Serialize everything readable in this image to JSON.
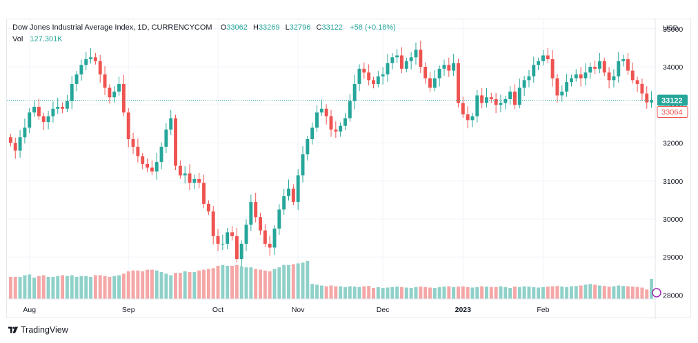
{
  "legend": {
    "title": "Dow Jones Industrial Average Index, 1D, CURRENCYCOM",
    "o_label": "O",
    "o_value": "33062",
    "h_label": "H",
    "h_value": "33269",
    "l_label": "L",
    "l_value": "32796",
    "c_label": "C",
    "c_value": "33122",
    "change": "+58 (+0.18%)",
    "vol_label": "Vol",
    "vol_value": "127.301K"
  },
  "footer": {
    "brand": "TradingView"
  },
  "colors": {
    "up": "#26a69a",
    "down": "#ef5350",
    "up_vol": "#8fd1c9",
    "down_vol": "#f4a7a6",
    "grid": "#f0f3fa",
    "axis_text": "#131722"
  },
  "chart_data": {
    "type": "candlestick",
    "title": "Dow Jones Industrial Average Index, 1D, CURRENCYCOM",
    "currency_label": "USD",
    "y_range": [
      27900,
      35250
    ],
    "y_ticks": [
      35000,
      34000,
      33000,
      32000,
      31000,
      30000,
      29000,
      28000
    ],
    "x_ticks": [
      {
        "label": "Aug",
        "index": 4
      },
      {
        "label": "Sep",
        "index": 25
      },
      {
        "label": "Oct",
        "index": 44
      },
      {
        "label": "Nov",
        "index": 61
      },
      {
        "label": "Dec",
        "index": 79
      },
      {
        "label": "2023",
        "index": 96
      },
      {
        "label": "Feb",
        "index": 113
      }
    ],
    "last_close": "33122",
    "last_close_label": "33122",
    "prev_close_label": "33064",
    "closes": [
      32000,
      31800,
      32150,
      32400,
      32800,
      32950,
      32700,
      32550,
      32700,
      32900,
      32950,
      32900,
      33100,
      33550,
      33800,
      34050,
      34200,
      34250,
      34150,
      33800,
      33450,
      33200,
      33350,
      33550,
      32800,
      32100,
      31900,
      31650,
      31450,
      31350,
      31250,
      31500,
      31900,
      32350,
      32650,
      31400,
      31150,
      31200,
      30950,
      31050,
      30950,
      30400,
      30200,
      29550,
      29350,
      29350,
      29650,
      29550,
      28950,
      29350,
      29850,
      30450,
      30050,
      29700,
      29350,
      29250,
      29750,
      30250,
      30600,
      30800,
      30450,
      31150,
      31700,
      32100,
      32400,
      32800,
      32900,
      32700,
      32350,
      32300,
      32450,
      32650,
      33100,
      33550,
      33950,
      33850,
      33650,
      33550,
      33750,
      33800,
      34100,
      34250,
      34300,
      33950,
      34150,
      34250,
      34450,
      34000,
      33700,
      33450,
      33700,
      33950,
      34050,
      33900,
      34100,
      33050,
      32750,
      32600,
      32700,
      33250,
      33050,
      33200,
      33150,
      33000,
      33050,
      33150,
      33350,
      33000,
      33450,
      33650,
      33750,
      34050,
      34150,
      34300,
      34200,
      33700,
      33250,
      33350,
      33600,
      33700,
      33800,
      33700,
      33850,
      34000,
      33950,
      34150,
      33850,
      33650,
      33750,
      34150,
      34200,
      33900,
      33650,
      33550,
      33300,
      33064,
      33122
    ],
    "volume_k": [
      140,
      140,
      140,
      150,
      155,
      135,
      145,
      150,
      140,
      140,
      145,
      150,
      145,
      150,
      140,
      145,
      145,
      140,
      150,
      150,
      145,
      140,
      145,
      150,
      160,
      175,
      180,
      180,
      175,
      185,
      185,
      180,
      170,
      160,
      150,
      165,
      165,
      175,
      170,
      170,
      180,
      185,
      190,
      195,
      210,
      215,
      210,
      210,
      215,
      205,
      200,
      200,
      190,
      185,
      180,
      175,
      190,
      200,
      215,
      215,
      220,
      225,
      230,
      240,
      95,
      90,
      85,
      80,
      85,
      80,
      80,
      75,
      80,
      78,
      75,
      80,
      82,
      70,
      75,
      70,
      72,
      75,
      78,
      75,
      72,
      70,
      75,
      78,
      75,
      72,
      70,
      75,
      78,
      80,
      75,
      78,
      80,
      75,
      72,
      75,
      80,
      78,
      75,
      75,
      80,
      75,
      70,
      78,
      75,
      80,
      78,
      75,
      72,
      75,
      78,
      80,
      82,
      78,
      75,
      80,
      82,
      85,
      90,
      95,
      90,
      85,
      82,
      78,
      80,
      85,
      82,
      80,
      78,
      76,
      72,
      60,
      127
    ]
  }
}
